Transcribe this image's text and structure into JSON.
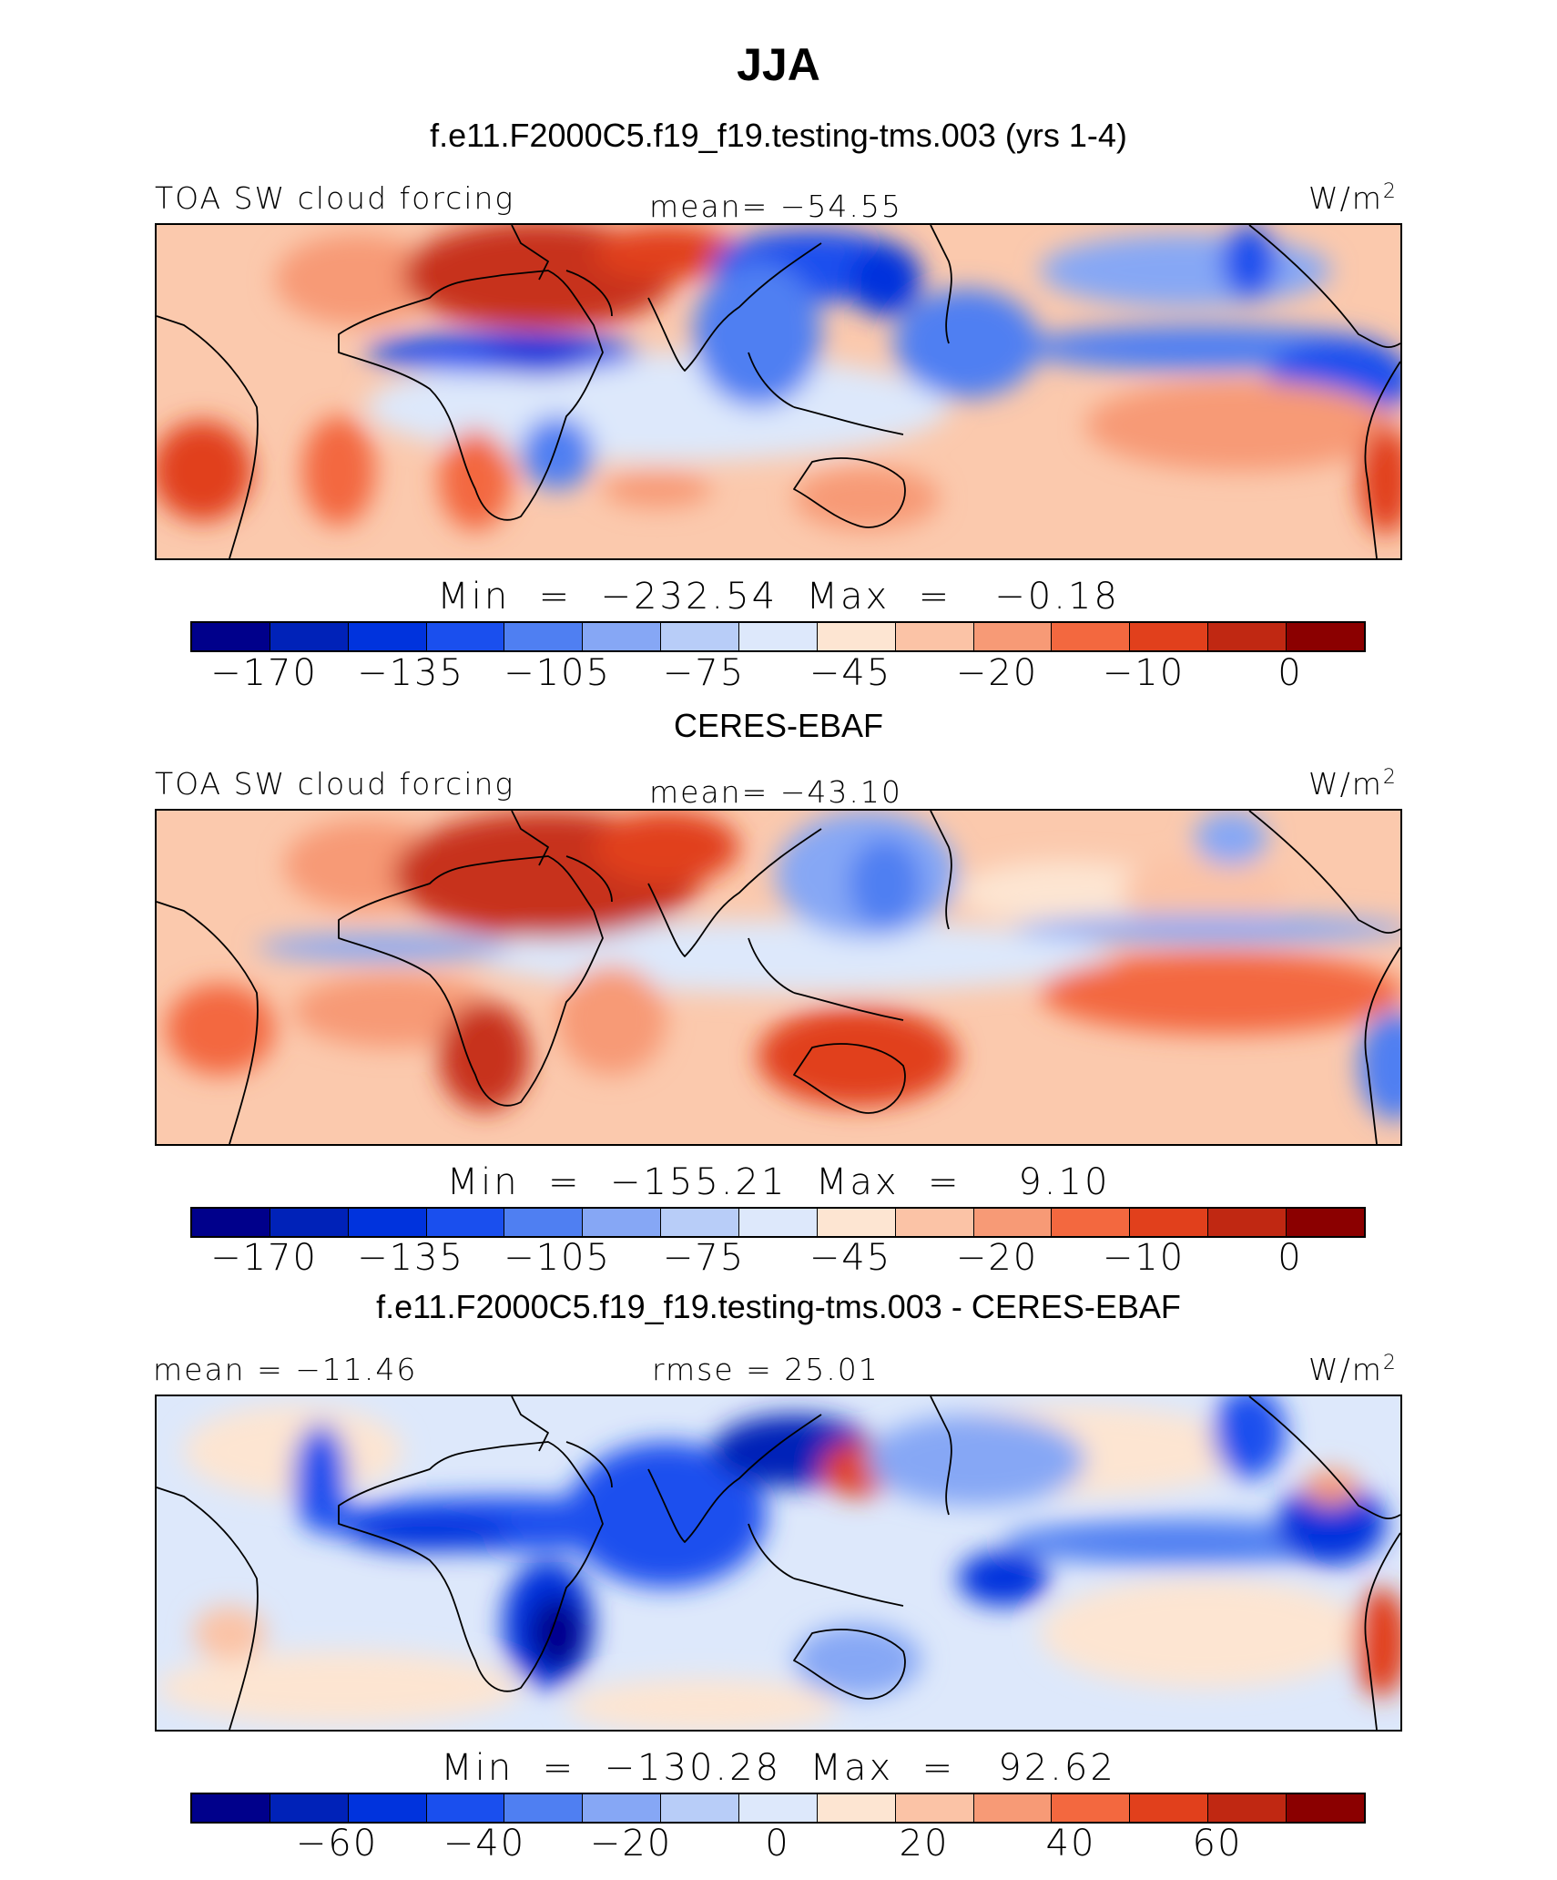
{
  "figure": {
    "title": "JJA"
  },
  "colors": {
    "abs_scale": [
      "#00008b",
      "#0022b8",
      "#0033dd",
      "#1a4fee",
      "#4f7ff2",
      "#86a7f5",
      "#b8cdf8",
      "#dde8fb",
      "#fde5d2",
      "#fbc3a6",
      "#f79a76",
      "#f3683f",
      "#e1401c",
      "#c02812",
      "#8b0000"
    ],
    "diff_scale": [
      "#00008b",
      "#0022b8",
      "#0033dd",
      "#1a4fee",
      "#4f7ff2",
      "#86a7f5",
      "#b8cdf8",
      "#dde8fb",
      "#fde5d2",
      "#fbc3a6",
      "#f79a76",
      "#f3683f",
      "#e1401c",
      "#c02812",
      "#8b0000"
    ]
  },
  "panels": [
    {
      "title": "f.e11.F2000C5.f19_f19.testing-tms.003 (yrs 1-4)",
      "left_label": "TOA SW cloud forcing",
      "center_label": "mean=  −54.55",
      "units": "W/m",
      "units_sup": "2",
      "minmax": "Min  =  −232.54  Max  =   −0.18",
      "ticks": [
        "−170",
        "−135",
        "−105",
        "−75",
        "−45",
        "−20",
        "−10",
        "0"
      ]
    },
    {
      "title": "CERES-EBAF",
      "left_label": "TOA SW cloud forcing",
      "center_label": "mean=  −43.10",
      "units": "W/m",
      "units_sup": "2",
      "minmax": "Min  =  −155.21  Max  =    9.10",
      "ticks": [
        "−170",
        "−135",
        "−105",
        "−75",
        "−45",
        "−20",
        "−10",
        "0"
      ]
    },
    {
      "title": "f.e11.F2000C5.f19_f19.testing-tms.003 - CERES-EBAF",
      "left_label": "mean  =  −11.46",
      "center_label": "rmse  =   25.01",
      "units": "W/m",
      "units_sup": "2",
      "minmax": "Min  =  −130.28  Max  =   92.62",
      "ticks": [
        "−60",
        "−40",
        "−20",
        "0",
        "20",
        "40",
        "60"
      ]
    }
  ]
}
